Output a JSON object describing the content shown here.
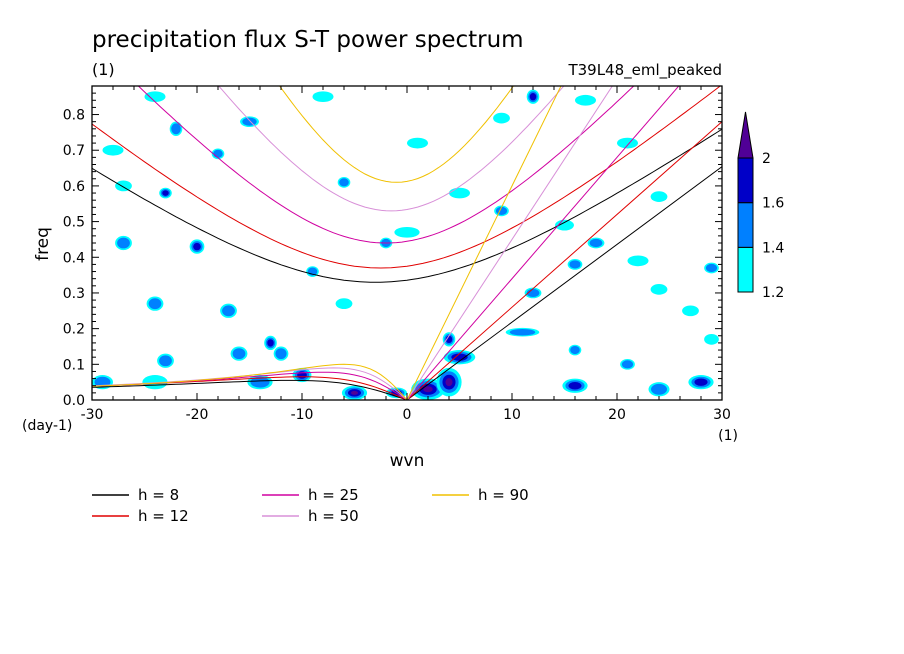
{
  "chart_data": {
    "type": "contour",
    "title": "precipitation flux S-T power spectrum",
    "title_units": "(1)",
    "experiment": "T39L48_eml_peaked",
    "xlabel": "wvn",
    "ylabel": "freq",
    "x_units": "(1)",
    "y_units": "(day-1)",
    "xlim": [
      -30,
      30
    ],
    "ylim": [
      0,
      0.88
    ],
    "x_ticks": [
      {
        "value": -30,
        "label": "-30"
      },
      {
        "value": -20,
        "label": "-20"
      },
      {
        "value": -10,
        "label": "-10"
      },
      {
        "value": 0,
        "label": "0"
      },
      {
        "value": 10,
        "label": "10"
      },
      {
        "value": 20,
        "label": "20"
      },
      {
        "value": 30,
        "label": "30"
      }
    ],
    "y_ticks": [
      {
        "value": 0,
        "label": "0.0"
      },
      {
        "value": 0.1,
        "label": "0.1"
      },
      {
        "value": 0.2,
        "label": "0.2"
      },
      {
        "value": 0.3,
        "label": "0.3"
      },
      {
        "value": 0.4,
        "label": "0.4"
      },
      {
        "value": 0.5,
        "label": "0.5"
      },
      {
        "value": 0.6,
        "label": "0.6"
      },
      {
        "value": 0.7,
        "label": "0.7"
      },
      {
        "value": 0.8,
        "label": "0.8"
      }
    ],
    "colorbar": {
      "levels": [
        {
          "value": 1.2,
          "label": "1.2",
          "color": "#00ffff"
        },
        {
          "value": 1.4,
          "label": "1.4",
          "color": "#0080ff"
        },
        {
          "value": 1.6,
          "label": "1.6",
          "color": "#0000c8"
        },
        {
          "value": 2,
          "label": "2",
          "color": "#500096"
        }
      ]
    },
    "dispersion_curves": [
      {
        "name": "h = 8",
        "h": 8,
        "color": "#000000",
        "kelvin_slope": 0.0218,
        "er_peak": 0.055,
        "er_peak_k": -11,
        "ig_min": 0.33,
        "ig_min_k": -3
      },
      {
        "name": "h = 12",
        "h": 12,
        "color": "#e00000",
        "kelvin_slope": 0.026,
        "er_peak": 0.065,
        "er_peak_k": -10,
        "ig_min": 0.37,
        "ig_min_k": -2.5
      },
      {
        "name": "h = 25",
        "h": 25,
        "color": "#d000a0",
        "kelvin_slope": 0.034,
        "er_peak": 0.078,
        "er_peak_k": -8,
        "ig_min": 0.44,
        "ig_min_k": -2
      },
      {
        "name": "h = 50",
        "h": 50,
        "color": "#d890d8",
        "kelvin_slope": 0.045,
        "er_peak": 0.09,
        "er_peak_k": -7,
        "ig_min": 0.53,
        "ig_min_k": -1.5
      },
      {
        "name": "h = 90",
        "h": 90,
        "color": "#f0c000",
        "kelvin_slope": 0.06,
        "er_peak": 0.1,
        "er_peak_k": -6,
        "ig_min": 0.61,
        "ig_min_k": -1
      }
    ],
    "blobs": [
      {
        "k": -5,
        "f": 0.02,
        "level": 3,
        "rx": 1.2,
        "ry": 0.02
      },
      {
        "k": -1,
        "f": 0.02,
        "level": 2,
        "rx": 1.0,
        "ry": 0.015
      },
      {
        "k": 2,
        "f": 0.03,
        "level": 3,
        "rx": 1.6,
        "ry": 0.03
      },
      {
        "k": 4,
        "f": 0.05,
        "level": 3,
        "rx": 1.2,
        "ry": 0.04
      },
      {
        "k": 5,
        "f": 0.12,
        "level": 2,
        "rx": 1.5,
        "ry": 0.02
      },
      {
        "k": 4,
        "f": 0.17,
        "level": 2,
        "rx": 0.6,
        "ry": 0.02
      },
      {
        "k": 11,
        "f": 0.19,
        "level": 1,
        "rx": 1.6,
        "ry": 0.012
      },
      {
        "k": -29,
        "f": 0.05,
        "level": 1,
        "rx": 1.0,
        "ry": 0.02
      },
      {
        "k": -24,
        "f": 0.05,
        "level": 0,
        "rx": 1.2,
        "ry": 0.02
      },
      {
        "k": -16,
        "f": 0.13,
        "level": 1,
        "rx": 0.8,
        "ry": 0.02
      },
      {
        "k": -13,
        "f": 0.16,
        "level": 2,
        "rx": 0.6,
        "ry": 0.02
      },
      {
        "k": -23,
        "f": 0.11,
        "level": 1,
        "rx": 0.8,
        "ry": 0.02
      },
      {
        "k": -17,
        "f": 0.25,
        "level": 1,
        "rx": 0.8,
        "ry": 0.02
      },
      {
        "k": -24,
        "f": 0.27,
        "level": 1,
        "rx": 0.8,
        "ry": 0.02
      },
      {
        "k": -20,
        "f": 0.43,
        "level": 2,
        "rx": 0.7,
        "ry": 0.02
      },
      {
        "k": -27,
        "f": 0.44,
        "level": 1,
        "rx": 0.8,
        "ry": 0.02
      },
      {
        "k": -23,
        "f": 0.58,
        "level": 2,
        "rx": 0.6,
        "ry": 0.015
      },
      {
        "k": -24,
        "f": 0.85,
        "level": 0,
        "rx": 1.0,
        "ry": 0.015
      },
      {
        "k": -22,
        "f": 0.76,
        "level": 1,
        "rx": 0.6,
        "ry": 0.02
      },
      {
        "k": -15,
        "f": 0.78,
        "level": 1,
        "rx": 0.9,
        "ry": 0.015
      },
      {
        "k": -18,
        "f": 0.69,
        "level": 1,
        "rx": 0.6,
        "ry": 0.015
      },
      {
        "k": -28,
        "f": 0.7,
        "level": 0,
        "rx": 1.0,
        "ry": 0.015
      },
      {
        "k": -12,
        "f": 0.13,
        "level": 1,
        "rx": 0.7,
        "ry": 0.02
      },
      {
        "k": -2,
        "f": 0.44,
        "level": 1,
        "rx": 0.6,
        "ry": 0.015
      },
      {
        "k": 0,
        "f": 0.47,
        "level": 0,
        "rx": 1.2,
        "ry": 0.015
      },
      {
        "k": -6,
        "f": 0.61,
        "level": 1,
        "rx": 0.6,
        "ry": 0.015
      },
      {
        "k": 5,
        "f": 0.58,
        "level": 0,
        "rx": 1.0,
        "ry": 0.015
      },
      {
        "k": 9,
        "f": 0.53,
        "level": 1,
        "rx": 0.7,
        "ry": 0.015
      },
      {
        "k": 12,
        "f": 0.85,
        "level": 2,
        "rx": 0.6,
        "ry": 0.02
      },
      {
        "k": 17,
        "f": 0.84,
        "level": 0,
        "rx": 1.0,
        "ry": 0.015
      },
      {
        "k": 21,
        "f": 0.72,
        "level": 0,
        "rx": 1.0,
        "ry": 0.015
      },
      {
        "k": 15,
        "f": 0.49,
        "level": 0,
        "rx": 0.9,
        "ry": 0.015
      },
      {
        "k": 18,
        "f": 0.44,
        "level": 1,
        "rx": 0.8,
        "ry": 0.015
      },
      {
        "k": 22,
        "f": 0.39,
        "level": 0,
        "rx": 1.0,
        "ry": 0.015
      },
      {
        "k": 16,
        "f": 0.38,
        "level": 1,
        "rx": 0.7,
        "ry": 0.015
      },
      {
        "k": 29,
        "f": 0.37,
        "level": 1,
        "rx": 0.7,
        "ry": 0.015
      },
      {
        "k": 24,
        "f": 0.31,
        "level": 0,
        "rx": 0.8,
        "ry": 0.015
      },
      {
        "k": 12,
        "f": 0.3,
        "level": 1,
        "rx": 0.8,
        "ry": 0.015
      },
      {
        "k": 27,
        "f": 0.25,
        "level": 0,
        "rx": 0.8,
        "ry": 0.015
      },
      {
        "k": 16,
        "f": 0.14,
        "level": 1,
        "rx": 0.6,
        "ry": 0.015
      },
      {
        "k": 21,
        "f": 0.1,
        "level": 1,
        "rx": 0.7,
        "ry": 0.015
      },
      {
        "k": 16,
        "f": 0.04,
        "level": 2,
        "rx": 1.2,
        "ry": 0.02
      },
      {
        "k": 24,
        "f": 0.03,
        "level": 1,
        "rx": 1.0,
        "ry": 0.02
      },
      {
        "k": 28,
        "f": 0.05,
        "level": 2,
        "rx": 1.2,
        "ry": 0.02
      },
      {
        "k": 29,
        "f": 0.17,
        "level": 0,
        "rx": 0.7,
        "ry": 0.015
      },
      {
        "k": -27,
        "f": 0.6,
        "level": 0,
        "rx": 0.8,
        "ry": 0.015
      },
      {
        "k": -10,
        "f": 0.07,
        "level": 2,
        "rx": 0.9,
        "ry": 0.02
      },
      {
        "k": -14,
        "f": 0.05,
        "level": 1,
        "rx": 1.2,
        "ry": 0.02
      },
      {
        "k": -6,
        "f": 0.27,
        "level": 0,
        "rx": 0.8,
        "ry": 0.015
      },
      {
        "k": -9,
        "f": 0.36,
        "level": 1,
        "rx": 0.6,
        "ry": 0.015
      },
      {
        "k": 1,
        "f": 0.72,
        "level": 0,
        "rx": 1.0,
        "ry": 0.015
      },
      {
        "k": 9,
        "f": 0.79,
        "level": 0,
        "rx": 0.8,
        "ry": 0.015
      },
      {
        "k": -8,
        "f": 0.85,
        "level": 0,
        "rx": 1.0,
        "ry": 0.015
      },
      {
        "k": 24,
        "f": 0.57,
        "level": 0,
        "rx": 0.8,
        "ry": 0.015
      }
    ]
  }
}
